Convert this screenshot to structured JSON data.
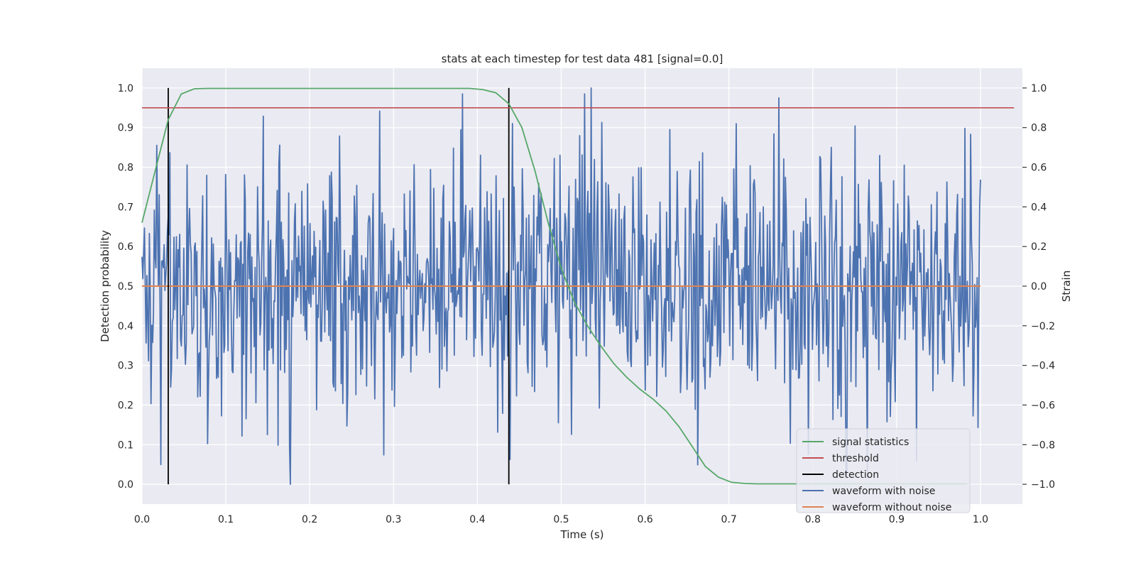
{
  "chart_data": {
    "type": "line",
    "title": "stats at each timestep for test data 481 [signal=0.0]",
    "xlabel": "Time (s)",
    "ylabel_left": "Detection probability",
    "ylabel_right": "Strain",
    "xlim": [
      0.0,
      1.05
    ],
    "ylim_left": [
      -0.05,
      1.05
    ],
    "ylim_right": [
      -1.1,
      1.1
    ],
    "x_ticks": [
      "0.0",
      "0.1",
      "0.2",
      "0.3",
      "0.4",
      "0.5",
      "0.6",
      "0.7",
      "0.8",
      "0.9",
      "1.0"
    ],
    "y_ticks_left": [
      "0.0",
      "0.1",
      "0.2",
      "0.3",
      "0.4",
      "0.5",
      "0.6",
      "0.7",
      "0.8",
      "0.9",
      "1.0"
    ],
    "y_ticks_right": [
      "−1.0",
      "−0.8",
      "−0.6",
      "−0.4",
      "−0.2",
      "0.0",
      "0.2",
      "0.4",
      "0.6",
      "0.8",
      "1.0"
    ],
    "grid": true,
    "legend_position": "bottom-right",
    "colors": {
      "background": "#eaeaf2",
      "grid": "#ffffff",
      "signal_statistics": "#55a868",
      "threshold": "#c44e52",
      "detection": "#000000",
      "waveform_with_noise": "#4c72b0",
      "waveform_without_noise": "#dd8452"
    },
    "series": [
      {
        "name": "signal statistics",
        "axis": "left",
        "x": [
          0.0,
          0.0156,
          0.0313,
          0.0469,
          0.0625,
          0.0781,
          0.0938,
          0.1094,
          0.125,
          0.1406,
          0.1563,
          0.1719,
          0.1875,
          0.2031,
          0.2188,
          0.2344,
          0.25,
          0.2656,
          0.2813,
          0.2969,
          0.3125,
          0.3281,
          0.3438,
          0.3594,
          0.375,
          0.3906,
          0.4063,
          0.4219,
          0.4375,
          0.4531,
          0.4688,
          0.4844,
          0.5,
          0.5156,
          0.5313,
          0.5469,
          0.5625,
          0.5781,
          0.5938,
          0.6094,
          0.625,
          0.6406,
          0.6563,
          0.6719,
          0.6875,
          0.7031,
          0.7188,
          0.7344,
          0.75,
          0.7656,
          0.7813,
          0.7969,
          0.8125,
          0.8281,
          0.8438,
          0.8594,
          0.875,
          0.8906,
          0.9063,
          0.9219,
          0.9375,
          0.9531,
          0.9688,
          0.9844
        ],
        "values": [
          0.66,
          0.79,
          0.92,
          0.985,
          0.998,
          0.999,
          0.999,
          0.999,
          0.999,
          0.999,
          0.999,
          0.999,
          0.999,
          0.999,
          0.999,
          0.999,
          0.999,
          0.999,
          0.999,
          0.999,
          0.999,
          0.999,
          0.999,
          0.999,
          0.999,
          0.999,
          0.996,
          0.988,
          0.96,
          0.9,
          0.79,
          0.66,
          0.545,
          0.46,
          0.4,
          0.35,
          0.305,
          0.27,
          0.24,
          0.215,
          0.185,
          0.145,
          0.095,
          0.045,
          0.018,
          0.005,
          0.002,
          0.001,
          0.001,
          0.001,
          0.001,
          0.001,
          0.001,
          0.001,
          0.001,
          0.001,
          0.001,
          0.001,
          0.001,
          0.001,
          0.001,
          0.001,
          0.001,
          0.001
        ]
      },
      {
        "name": "threshold",
        "axis": "left",
        "x": [
          0.0,
          1.04
        ],
        "values": [
          0.95,
          0.95
        ]
      },
      {
        "name": "detection",
        "axis": "left",
        "type": "vlines",
        "x": [
          0.0313,
          0.4375
        ],
        "ymin": 0.0,
        "ymax": 1.0
      },
      {
        "name": "waveform with noise",
        "axis": "right",
        "type": "noise",
        "x_range": [
          0.0,
          1.0
        ],
        "n_points": 1024,
        "noise_std": 0.33,
        "seed": 481,
        "peak": {
          "x": 0.5352,
          "value": 1.0
        },
        "trough": {
          "x": 0.1768,
          "value": -1.0
        }
      },
      {
        "name": "waveform without noise",
        "axis": "right",
        "x": [
          0.0,
          1.0
        ],
        "values": [
          0.0,
          0.0
        ]
      }
    ],
    "legend": [
      "signal statistics",
      "threshold",
      "detection",
      "waveform with noise",
      "waveform without noise"
    ]
  }
}
